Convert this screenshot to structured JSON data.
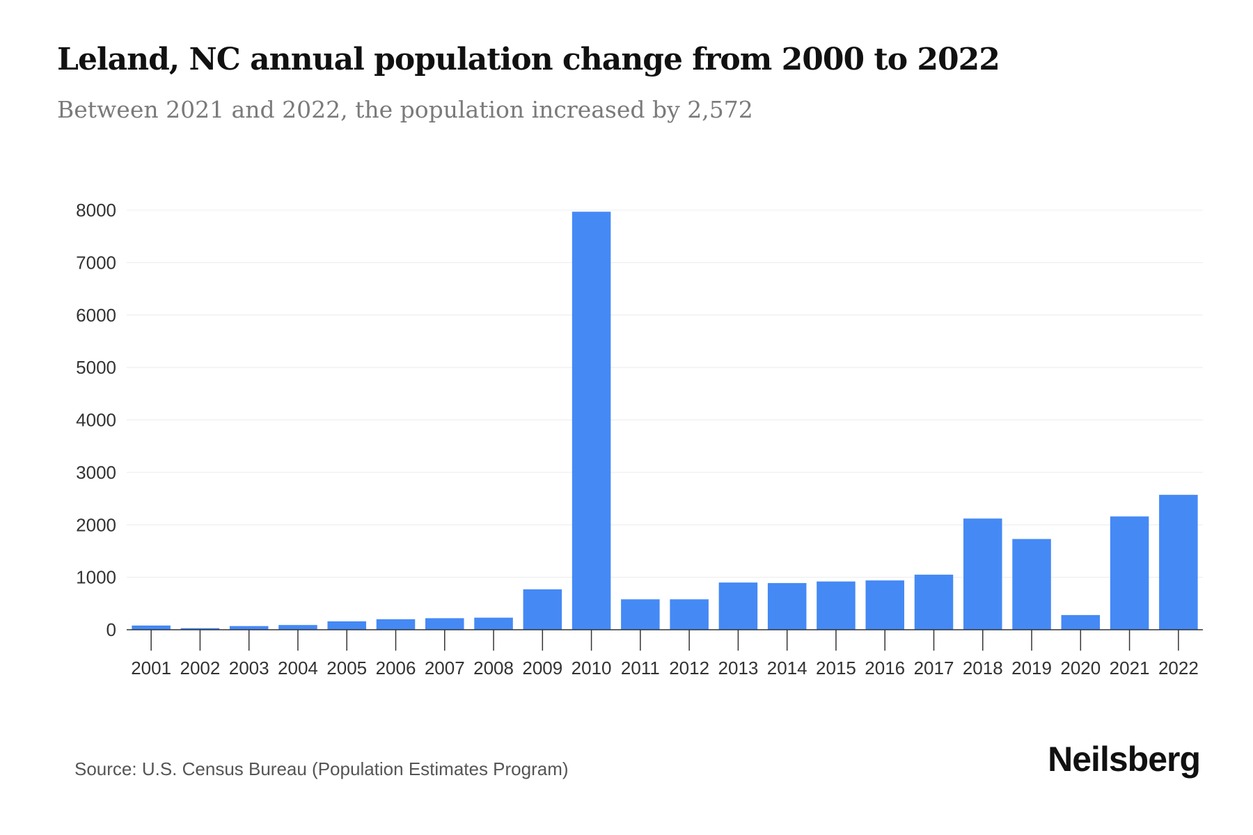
{
  "title": "Leland, NC annual population change from 2000 to 2022",
  "subtitle": "Between 2021 and 2022, the population increased by 2,572",
  "source": "Source: U.S. Census Bureau (Population Estimates Program)",
  "brand": "Neilsberg",
  "colors": {
    "bar": "#4589f5",
    "grid": "#ececec",
    "axis": "#333333"
  },
  "chart_data": {
    "type": "bar",
    "title": "Leland, NC annual population change from 2000 to 2022",
    "xlabel": "",
    "ylabel": "",
    "ylim": [
      0,
      8000
    ],
    "yticks": [
      0,
      1000,
      2000,
      3000,
      4000,
      5000,
      6000,
      7000,
      8000
    ],
    "grid": true,
    "categories": [
      "2001",
      "2002",
      "2003",
      "2004",
      "2005",
      "2006",
      "2007",
      "2008",
      "2009",
      "2010",
      "2011",
      "2012",
      "2013",
      "2014",
      "2015",
      "2016",
      "2017",
      "2018",
      "2019",
      "2020",
      "2021",
      "2022"
    ],
    "values": [
      80,
      30,
      70,
      90,
      160,
      200,
      220,
      230,
      770,
      7970,
      580,
      580,
      900,
      890,
      920,
      940,
      1050,
      2120,
      1730,
      280,
      2160,
      2572
    ]
  }
}
